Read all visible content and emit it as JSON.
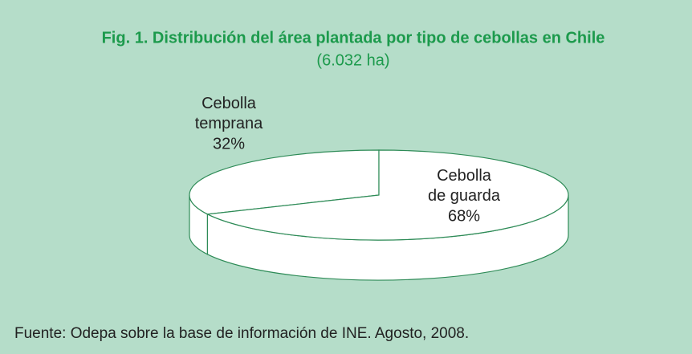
{
  "chart_data": {
    "type": "pie3d",
    "title": "Fig. 1. Distribución del área plantada por tipo de cebollas en Chile",
    "subtitle": "(6.032 ha)",
    "categories": [
      "Cebolla temprana",
      "Cebolla de guarda"
    ],
    "values": [
      32,
      68
    ],
    "value_labels": [
      "32%",
      "68%"
    ],
    "source": "Fuente: Odepa sobre la base de información de INE. Agosto, 2008."
  }
}
